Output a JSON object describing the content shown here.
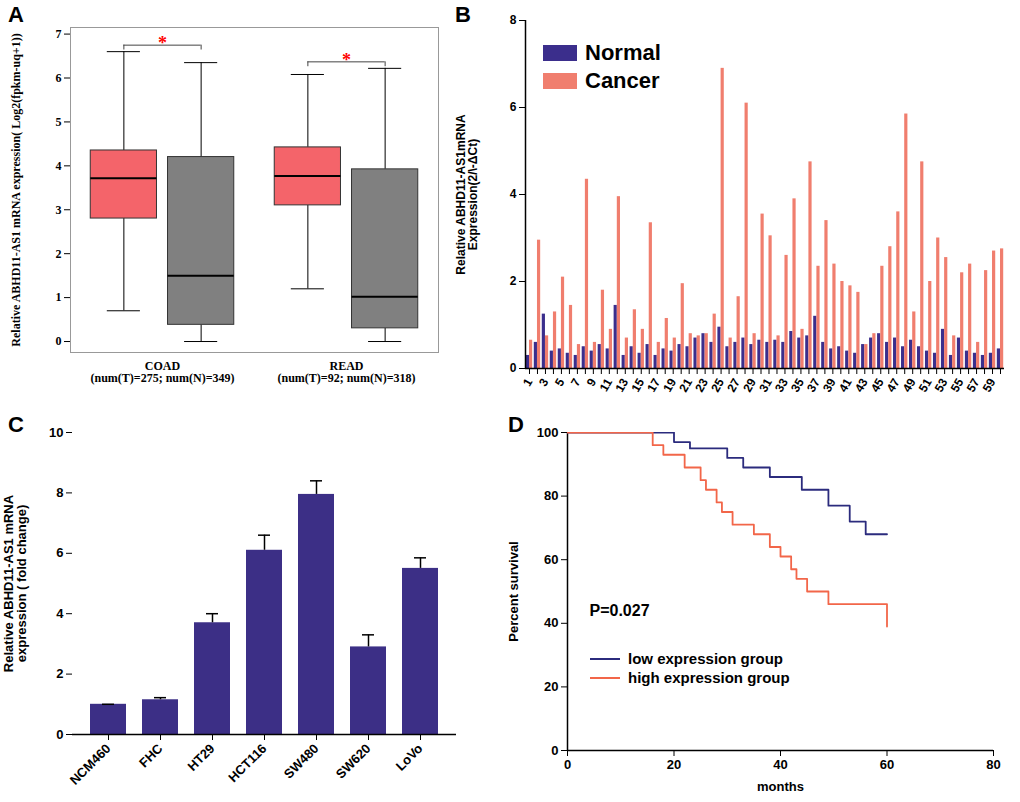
{
  "chart_data": [
    {
      "panel": "A",
      "type": "box",
      "ylabel": "Relative ABHD11-AS1 mRNA expression( Log2(fpkm-uq+1))",
      "categories": [
        "COAD\n(num(T)=275; num(N)=349)",
        "READ\n(num(T)=92; num(N)=318)"
      ],
      "series": [
        {
          "color": "#f4646a",
          "q1": [
            2.8,
            3.1
          ],
          "median": [
            3.72,
            3.77
          ],
          "q3": [
            4.35,
            4.42
          ],
          "whisker_low": [
            0.7,
            1.2
          ],
          "whisker_high": [
            6.6,
            6.08
          ]
        },
        {
          "color": "#808080",
          "q1": [
            0.38,
            0.3
          ],
          "median": [
            1.5,
            1.02
          ],
          "q3": [
            4.2,
            3.92
          ],
          "whisker_low": [
            0,
            0
          ],
          "whisker_high": [
            6.35,
            6.22
          ]
        }
      ],
      "significance": [
        "*",
        "*"
      ],
      "ylim": [
        -0.25,
        7.15
      ],
      "yticks": [
        0,
        1,
        2,
        3,
        4,
        5,
        6,
        7
      ]
    },
    {
      "panel": "B",
      "type": "bar",
      "ylabel": "Relative ABHD11-AS1mRNA\nExpression(2/\\-ΔCt)",
      "categories": [
        "1",
        null,
        "3",
        null,
        "5",
        null,
        "7",
        null,
        "9",
        null,
        "11",
        null,
        "13",
        null,
        "15",
        null,
        "17",
        null,
        "19",
        null,
        "21",
        null,
        "23",
        null,
        "25",
        null,
        "27",
        null,
        "29",
        null,
        "31",
        null,
        "33",
        null,
        "35",
        null,
        "37",
        null,
        "39",
        null,
        "41",
        null,
        "43",
        null,
        "45",
        null,
        "47",
        null,
        "49",
        null,
        "51",
        null,
        "53",
        null,
        "55",
        null,
        "57",
        null,
        "59",
        null
      ],
      "series": [
        {
          "name": "Normal",
          "color": "#3b2e8c",
          "values": [
            0.3,
            0.6,
            1.25,
            0.4,
            0.45,
            0.35,
            0.3,
            0.5,
            0.4,
            0.55,
            0.45,
            1.45,
            0.3,
            0.5,
            0.35,
            0.55,
            0.3,
            0.45,
            0.4,
            0.55,
            0.5,
            0.7,
            0.8,
            0.6,
            0.95,
            0.5,
            0.6,
            0.7,
            0.55,
            0.65,
            0.6,
            0.65,
            0.6,
            0.85,
            0.7,
            0.75,
            1.2,
            0.6,
            0.45,
            0.5,
            0.4,
            0.35,
            0.55,
            0.7,
            0.8,
            0.6,
            0.7,
            0.5,
            0.65,
            0.5,
            0.4,
            0.35,
            0.9,
            0.3,
            0.7,
            0.4,
            0.35,
            0.3,
            0.35,
            0.45
          ]
        },
        {
          "name": "Cancer",
          "color": "#f07e6e",
          "values": [
            0.65,
            2.95,
            0.75,
            1.3,
            2.1,
            1.45,
            0.55,
            4.35,
            0.6,
            1.8,
            0.9,
            3.95,
            0.7,
            1.35,
            0.9,
            3.35,
            0.6,
            1.15,
            0.7,
            1.95,
            0.8,
            0.75,
            0.8,
            1.25,
            6.9,
            0.7,
            1.65,
            6.1,
            0.8,
            3.55,
            3.05,
            0.75,
            2.6,
            3.9,
            0.9,
            4.75,
            2.35,
            3.4,
            2.4,
            2.0,
            1.9,
            1.75,
            0.55,
            0.8,
            2.35,
            2.8,
            3.6,
            5.85,
            1.3,
            4.75,
            2.0,
            3.0,
            2.55,
            0.75,
            2.2,
            2.4,
            0.6,
            2.25,
            2.7,
            2.75
          ]
        }
      ],
      "legend": "top-left",
      "ylim": [
        0,
        8
      ],
      "yticks": [
        0,
        2,
        4,
        6,
        8
      ]
    },
    {
      "panel": "C",
      "type": "bar",
      "ylabel": "Relative ABHD11-AS1 mRNA\nexpression ( fold change)",
      "categories": [
        "NCM460",
        "FHC",
        "HT29",
        "HCT116",
        "SW480",
        "SW620",
        "LoVo"
      ],
      "values": [
        1.0,
        1.15,
        3.7,
        6.1,
        7.95,
        2.9,
        5.5
      ],
      "errors": [
        0.0,
        0.07,
        0.3,
        0.5,
        0.45,
        0.4,
        0.35
      ],
      "color": "#3c2f86",
      "ylim": [
        0,
        10
      ],
      "yticks": [
        0,
        2,
        4,
        6,
        8,
        10
      ]
    },
    {
      "panel": "D",
      "type": "line",
      "xlabel": "months",
      "ylabel": "Percent survival",
      "series": [
        {
          "name": "low expression group",
          "color": "#2b2b7d",
          "line_style": "step",
          "x": [
            0,
            20,
            23,
            30,
            33,
            38,
            44,
            49,
            53,
            56,
            60
          ],
          "values": [
            100,
            97,
            95,
            92,
            89,
            86,
            82,
            77,
            72,
            68,
            68
          ]
        },
        {
          "name": "high expression group",
          "color": "#f26649",
          "line_style": "step",
          "x": [
            0,
            16,
            18,
            22,
            25,
            26,
            28,
            29,
            31,
            35,
            38,
            40,
            42,
            43,
            45,
            49,
            60
          ],
          "values": [
            100,
            96,
            93,
            89,
            85,
            82,
            78,
            75,
            71,
            68,
            64,
            61,
            57,
            54,
            50,
            46,
            39
          ]
        }
      ],
      "annotation": "P=0.027",
      "legend": "bottom-left",
      "xlim": [
        0,
        80
      ],
      "xticks": [
        0,
        20,
        40,
        60,
        80
      ],
      "ylim": [
        0,
        100
      ],
      "yticks": [
        0,
        20,
        40,
        60,
        80,
        100
      ]
    }
  ]
}
